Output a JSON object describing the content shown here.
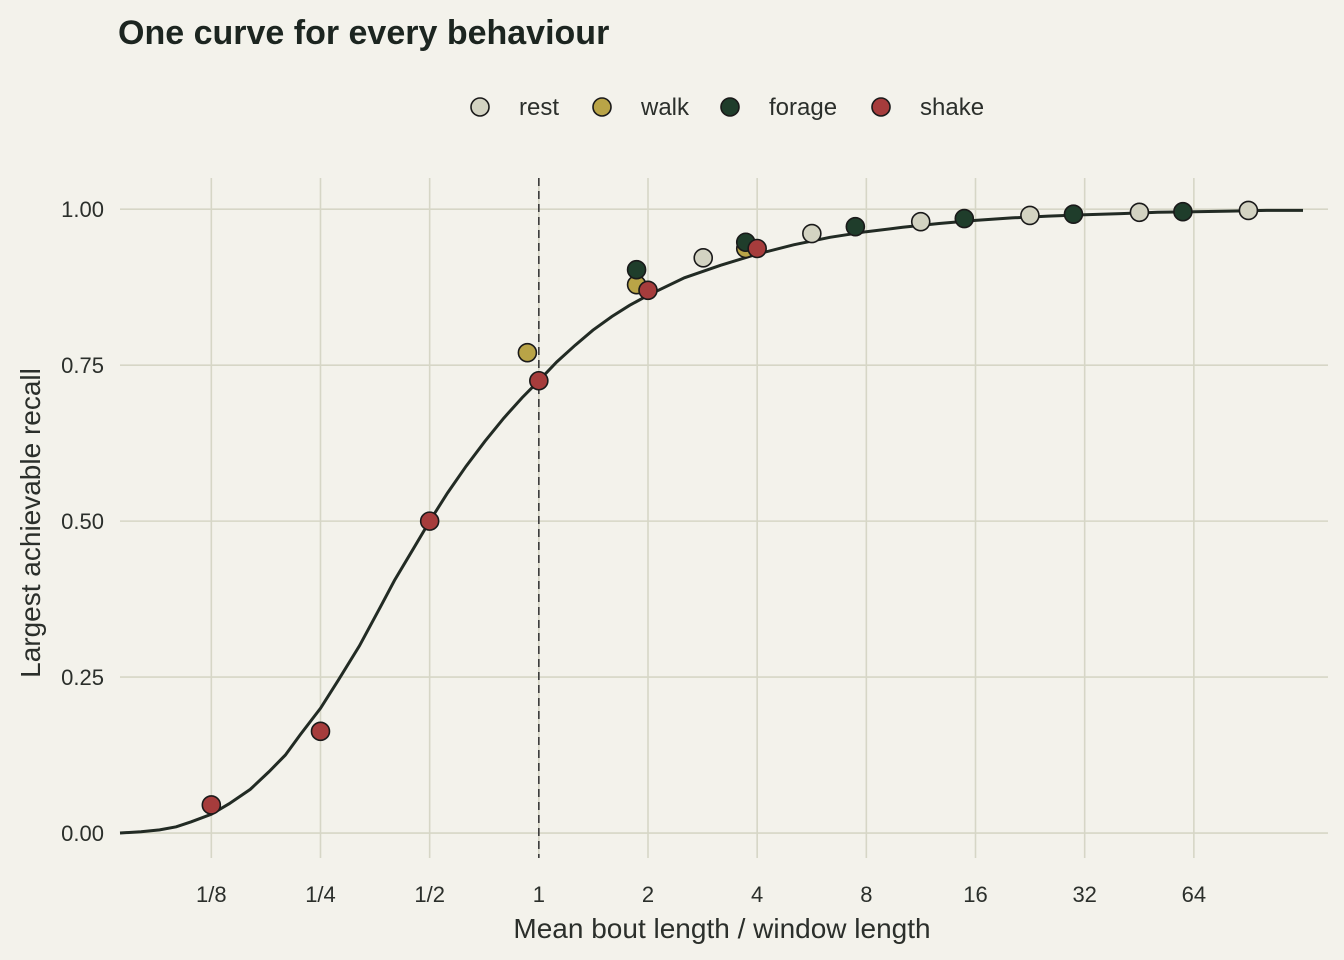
{
  "chart_data": {
    "type": "scatter",
    "title": "One curve for every behaviour",
    "xlabel": "Mean bout length / window length",
    "ylabel": "Largest achievable recall",
    "x_scale": "log2",
    "xlim": [
      0.07,
      150
    ],
    "ylim": [
      -0.04,
      1.05
    ],
    "x_ticks": [
      {
        "value": 0.125,
        "label": "1/8"
      },
      {
        "value": 0.25,
        "label": "1/4"
      },
      {
        "value": 0.5,
        "label": "1/2"
      },
      {
        "value": 1,
        "label": "1"
      },
      {
        "value": 2,
        "label": "2"
      },
      {
        "value": 4,
        "label": "4"
      },
      {
        "value": 8,
        "label": "8"
      },
      {
        "value": 16,
        "label": "16"
      },
      {
        "value": 32,
        "label": "32"
      },
      {
        "value": 64,
        "label": "64"
      }
    ],
    "y_ticks": [
      {
        "value": 0,
        "label": "0.00"
      },
      {
        "value": 0.25,
        "label": "0.25"
      },
      {
        "value": 0.5,
        "label": "0.50"
      },
      {
        "value": 0.75,
        "label": "0.75"
      },
      {
        "value": 1,
        "label": "1.00"
      }
    ],
    "grid": true,
    "legend_position": "top",
    "reference_line_x": 1,
    "curve": {
      "x": [
        0.07,
        0.08,
        0.09,
        0.1,
        0.11,
        0.125,
        0.14,
        0.16,
        0.18,
        0.2,
        0.22,
        0.25,
        0.28,
        0.32,
        0.36,
        0.4,
        0.45,
        0.5,
        0.56,
        0.63,
        0.71,
        0.8,
        0.9,
        1.0,
        1.12,
        1.26,
        1.41,
        1.59,
        1.78,
        2.0,
        2.52,
        3.17,
        4.0,
        5.04,
        6.35,
        8.0,
        10.08,
        12.7,
        16.0,
        20.16,
        25.4,
        32.0,
        40.3,
        50.8,
        64.0,
        80.6,
        101.6,
        128.0
      ],
      "y": [
        0.0,
        0.002,
        0.005,
        0.01,
        0.018,
        0.03,
        0.047,
        0.07,
        0.098,
        0.125,
        0.158,
        0.2,
        0.245,
        0.3,
        0.355,
        0.405,
        0.455,
        0.5,
        0.545,
        0.588,
        0.628,
        0.665,
        0.698,
        0.725,
        0.755,
        0.782,
        0.806,
        0.828,
        0.846,
        0.862,
        0.89,
        0.91,
        0.928,
        0.943,
        0.955,
        0.964,
        0.971,
        0.977,
        0.982,
        0.986,
        0.989,
        0.991,
        0.993,
        0.995,
        0.996,
        0.997,
        0.998,
        0.998
      ]
    },
    "series": [
      {
        "name": "rest",
        "color": "#d3d3c2",
        "points": [
          [
            2.84,
            0.922
          ],
          [
            5.66,
            0.961
          ],
          [
            11.3,
            0.98
          ],
          [
            22.6,
            0.99
          ],
          [
            45.3,
            0.995
          ],
          [
            90.5,
            0.998
          ]
        ]
      },
      {
        "name": "walk",
        "color": "#b9a447",
        "points": [
          [
            0.93,
            0.77
          ],
          [
            1.86,
            0.879
          ],
          [
            3.72,
            0.937
          ]
        ]
      },
      {
        "name": "forage",
        "color": "#1f3d2b",
        "points": [
          [
            1.86,
            0.903
          ],
          [
            3.72,
            0.947
          ],
          [
            7.46,
            0.972
          ],
          [
            14.9,
            0.985
          ],
          [
            29.8,
            0.992
          ],
          [
            59.7,
            0.996
          ]
        ]
      },
      {
        "name": "shake",
        "color": "#a63c3c",
        "points": [
          [
            0.125,
            0.045
          ],
          [
            0.25,
            0.163
          ],
          [
            0.5,
            0.5
          ],
          [
            1.0,
            0.725
          ],
          [
            2.0,
            0.87
          ],
          [
            4.0,
            0.937
          ]
        ]
      }
    ]
  }
}
